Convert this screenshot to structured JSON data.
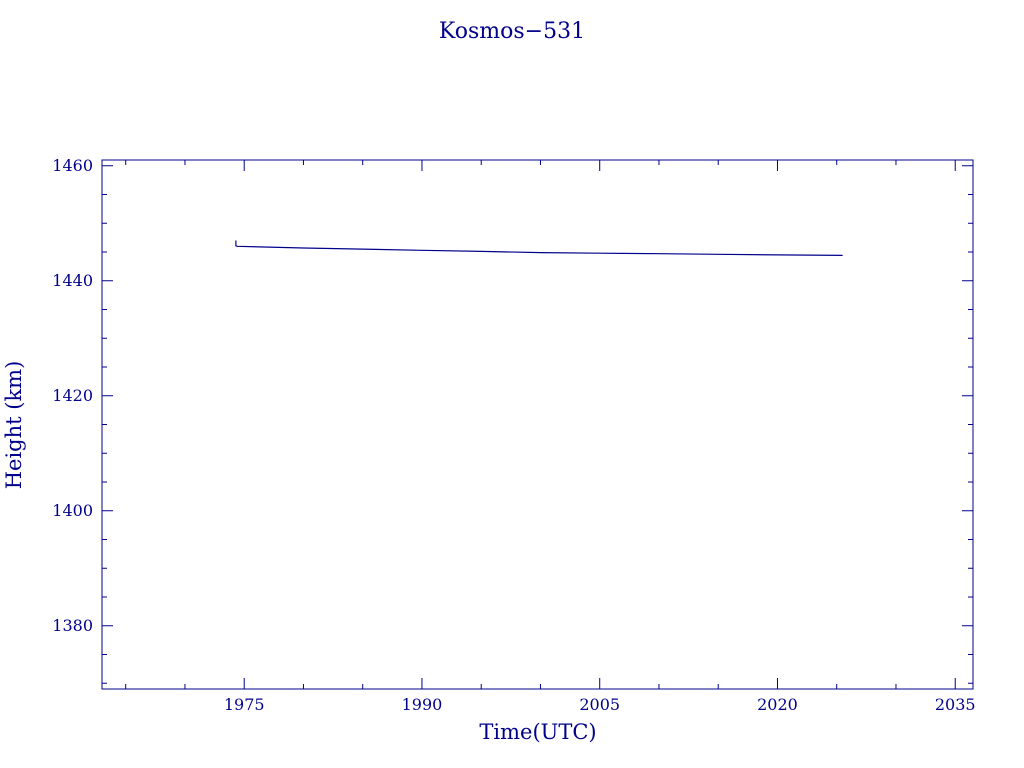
{
  "chart_data": {
    "type": "line",
    "title": "Kosmos−531",
    "xlabel": "Time(UTC)",
    "ylabel": "Height (km)",
    "xlim": [
      1963.0,
      2036.5
    ],
    "ylim": [
      1369.0,
      1461.0
    ],
    "x_ticks": [
      1975,
      1990,
      2005,
      2020,
      2035
    ],
    "x_tick_labels": [
      "1975",
      "1990",
      "2005",
      "2020",
      "2035"
    ],
    "y_ticks": [
      1380,
      1400,
      1420,
      1440,
      1460
    ],
    "y_tick_labels": [
      "1380",
      "1400",
      "1420",
      "1440",
      "1460"
    ],
    "grid": false,
    "color": "#00008b",
    "series": [
      {
        "x": [
          1974.3,
          1974.3,
          1974.4,
          1980,
          1985,
          1990,
          1995,
          2000,
          2005,
          2010,
          2015,
          2020,
          2025.5
        ],
        "y": [
          1447.0,
          1446.1,
          1446.0,
          1445.7,
          1445.5,
          1445.3,
          1445.1,
          1444.9,
          1444.8,
          1444.7,
          1444.6,
          1444.5,
          1444.4
        ]
      }
    ]
  }
}
